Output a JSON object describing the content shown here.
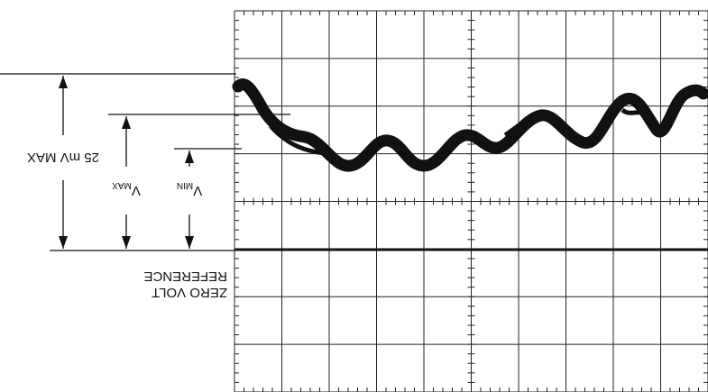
{
  "labels": {
    "range": "25 mV MAX",
    "vmax": {
      "symbol": "V",
      "sub": "MAX"
    },
    "vmin": {
      "symbol": "V",
      "sub": "MIN"
    },
    "reference": [
      "ZERO VOLT",
      "REFERENCE"
    ]
  }
}
